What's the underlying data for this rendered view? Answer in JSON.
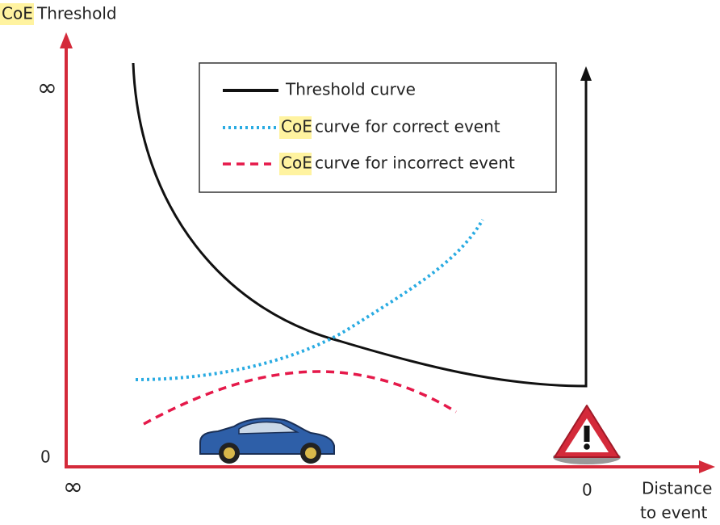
{
  "y_axis": {
    "label_highlight": "CoE",
    "label": "Threshold",
    "ticks": [
      "∞",
      "0"
    ]
  },
  "x_axis": {
    "ticks": [
      "∞",
      "0"
    ],
    "label": [
      "Distance",
      "to event"
    ]
  },
  "legend": {
    "items": [
      {
        "label": "Threshold curve"
      },
      {
        "highlight": "CoE",
        "label": "curve for correct event"
      },
      {
        "highlight": "CoE",
        "label": "curve for incorrect event"
      }
    ]
  }
}
